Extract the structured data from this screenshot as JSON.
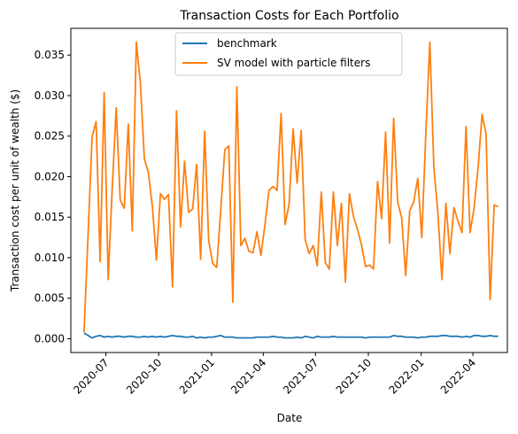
{
  "chart_data": {
    "type": "line",
    "title": "Transaction Costs for Each Portfolio",
    "xlabel": "Date",
    "ylabel": "Transaction cost per unit of wealth ($)",
    "x_start": "2020-05-24",
    "x_end": "2022-05-15",
    "xlim": [
      "2020-05-01",
      "2022-05-31"
    ],
    "ylim": [
      -0.0017,
      0.0383
    ],
    "yticks": [
      0.0,
      0.005,
      0.01,
      0.015,
      0.02,
      0.025,
      0.03,
      0.035
    ],
    "yticklabels": [
      "0.000",
      "0.005",
      "0.010",
      "0.015",
      "0.020",
      "0.025",
      "0.030",
      "0.035"
    ],
    "xticks": [
      "2020-07-01",
      "2020-10-01",
      "2021-01-01",
      "2021-04-01",
      "2021-07-01",
      "2021-10-01",
      "2022-01-01",
      "2022-04-01"
    ],
    "xticklabels": [
      "2020-07",
      "2020-10",
      "2021-01",
      "2021-04",
      "2021-07",
      "2021-10",
      "2022-01",
      "2022-04"
    ],
    "legend_position": "top-center",
    "grid": false,
    "series": [
      {
        "name": "benchmark",
        "color": "#1f77b4",
        "values": [
          0.0007,
          0.0004,
          0.0001,
          0.0003,
          0.0004,
          0.0002,
          0.0003,
          0.0002,
          0.0003,
          0.0003,
          0.0002,
          0.0003,
          0.0003,
          0.0002,
          0.0002,
          0.0003,
          0.0002,
          0.0003,
          0.0002,
          0.0003,
          0.0002,
          0.0003,
          0.0004,
          0.0003,
          0.0003,
          0.0002,
          0.0002,
          0.0003,
          0.0001,
          0.0002,
          0.0001,
          0.0002,
          0.0002,
          0.0003,
          0.0004,
          0.0002,
          0.0002,
          0.0002,
          0.0001,
          0.0001,
          0.0001,
          0.0001,
          0.0001,
          0.0002,
          0.0002,
          0.0002,
          0.0002,
          0.0003,
          0.0002,
          0.0002,
          0.0001,
          0.0001,
          0.0001,
          0.0002,
          0.0001,
          0.0003,
          0.0002,
          0.0001,
          0.0003,
          0.0002,
          0.0002,
          0.0002,
          0.0003,
          0.0002,
          0.0002,
          0.0002,
          0.0002,
          0.0002,
          0.0002,
          0.0002,
          0.0001,
          0.0002,
          0.0002,
          0.0002,
          0.0002,
          0.0002,
          0.0002,
          0.0004,
          0.0003,
          0.0003,
          0.0002,
          0.0002,
          0.0002,
          0.0001,
          0.0002,
          0.0002,
          0.0003,
          0.0003,
          0.0003,
          0.0004,
          0.0004,
          0.0003,
          0.0003,
          0.0003,
          0.0002,
          0.0003,
          0.0002,
          0.0004,
          0.0004,
          0.0003,
          0.0003,
          0.0004,
          0.0003,
          0.0003
        ]
      },
      {
        "name": "SV model with particle filters",
        "color": "#ff7f0e",
        "values": [
          0.0008,
          0.0128,
          0.0249,
          0.0268,
          0.0095,
          0.0304,
          0.0073,
          0.0185,
          0.0285,
          0.0171,
          0.0161,
          0.0265,
          0.0133,
          0.0366,
          0.0316,
          0.0222,
          0.0205,
          0.0163,
          0.0097,
          0.0179,
          0.0172,
          0.0178,
          0.0064,
          0.0281,
          0.0138,
          0.0219,
          0.0156,
          0.016,
          0.0215,
          0.0098,
          0.0256,
          0.0121,
          0.0093,
          0.0088,
          0.0159,
          0.0233,
          0.0238,
          0.0045,
          0.0311,
          0.0115,
          0.0124,
          0.0108,
          0.0106,
          0.0132,
          0.0103,
          0.0141,
          0.0183,
          0.0188,
          0.0183,
          0.0278,
          0.0141,
          0.0166,
          0.0259,
          0.0192,
          0.0257,
          0.0122,
          0.0105,
          0.0115,
          0.009,
          0.0181,
          0.0094,
          0.0086,
          0.0181,
          0.0115,
          0.0167,
          0.007,
          0.0179,
          0.0151,
          0.0135,
          0.0116,
          0.0089,
          0.0091,
          0.0086,
          0.0194,
          0.0148,
          0.0255,
          0.0118,
          0.0272,
          0.0169,
          0.0149,
          0.0078,
          0.0158,
          0.0169,
          0.0198,
          0.0125,
          0.0253,
          0.0366,
          0.0211,
          0.0156,
          0.0073,
          0.0167,
          0.0105,
          0.0162,
          0.0145,
          0.0131,
          0.0262,
          0.0131,
          0.0161,
          0.0211,
          0.0277,
          0.0252,
          0.0048,
          0.0165,
          0.0163
        ]
      }
    ]
  }
}
